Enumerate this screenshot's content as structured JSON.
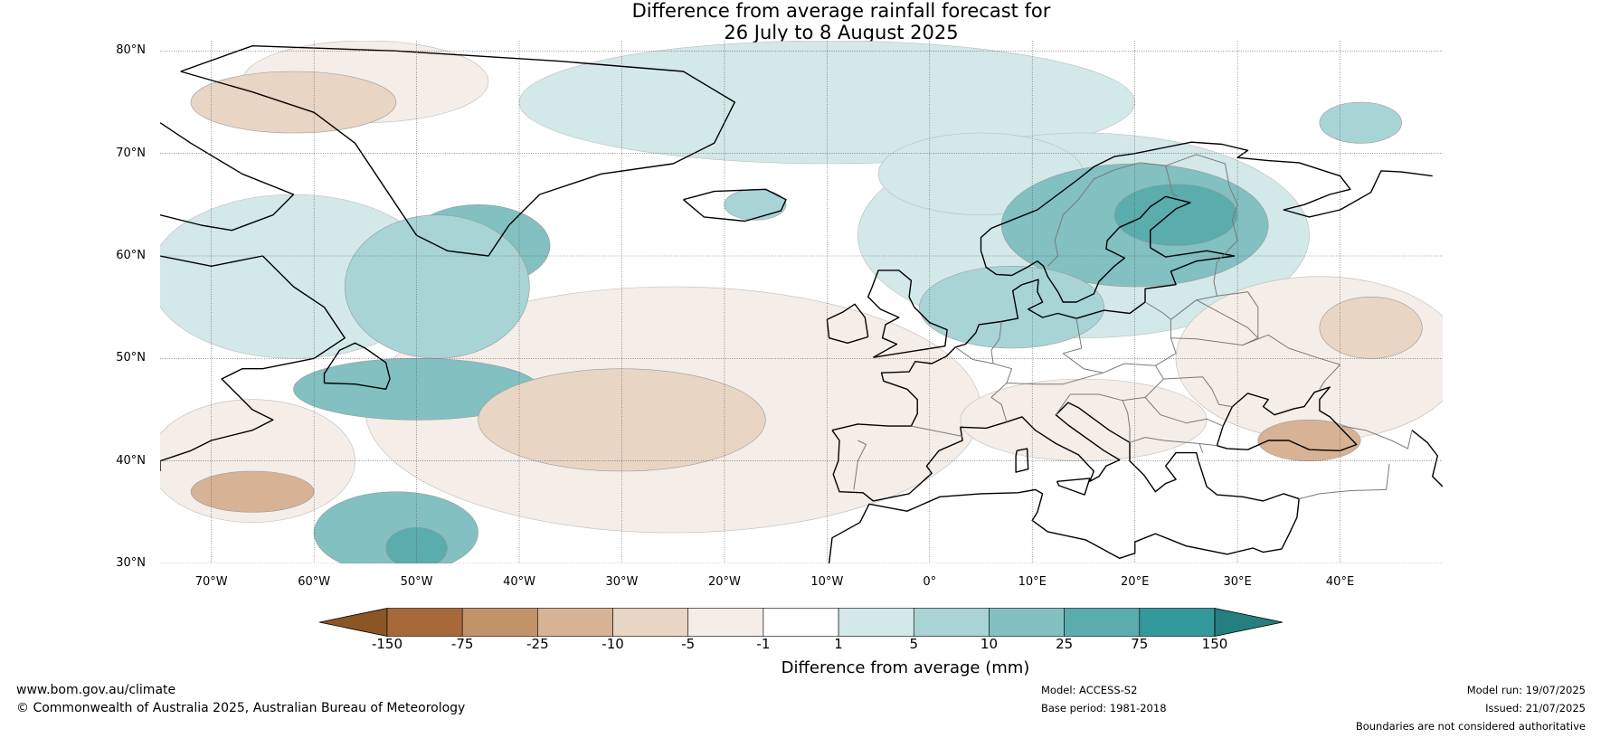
{
  "title": {
    "line1": "Difference from average rainfall forecast for",
    "line2": "26 July to 8 August 2025"
  },
  "map": {
    "latitudes": [
      "80°N",
      "70°N",
      "60°N",
      "50°N",
      "40°N",
      "30°N"
    ],
    "longitudes": [
      "70°W",
      "60°W",
      "50°W",
      "40°W",
      "30°W",
      "20°W",
      "10°W",
      "0°",
      "10°E",
      "20°E",
      "30°E",
      "40°E"
    ],
    "extent": {
      "lon_min": -75,
      "lon_max": 50,
      "lat_min": 30,
      "lat_max": 81
    },
    "regions": [
      {
        "name": "greenland-south-wetter",
        "lon": -44,
        "lat": 61,
        "rx_deg": 7,
        "ry_deg": 4,
        "class": "w3"
      },
      {
        "name": "labrador-sea-wetter",
        "lon": -48,
        "lat": 57,
        "rx_deg": 9,
        "ry_deg": 7,
        "class": "w2"
      },
      {
        "name": "newfoundland-wetter",
        "lon": -50,
        "lat": 47,
        "rx_deg": 12,
        "ry_deg": 3,
        "class": "w3"
      },
      {
        "name": "atlantic-sw-wetter",
        "lon": -52,
        "lat": 33,
        "rx_deg": 8,
        "ry_deg": 4,
        "class": "w3"
      },
      {
        "name": "atlantic-sw-wetter-core",
        "lon": -50,
        "lat": 31.5,
        "rx_deg": 3,
        "ry_deg": 2,
        "class": "w4"
      },
      {
        "name": "scandinavia-wetter",
        "lon": 20,
        "lat": 63,
        "rx_deg": 13,
        "ry_deg": 6,
        "class": "w3"
      },
      {
        "name": "scandinavia-wetter-core",
        "lon": 24,
        "lat": 64,
        "rx_deg": 6,
        "ry_deg": 3,
        "class": "w4"
      },
      {
        "name": "north-sea-wetter",
        "lon": 8,
        "lat": 55,
        "rx_deg": 9,
        "ry_deg": 4,
        "class": "w2"
      },
      {
        "name": "iceland-wetter",
        "lon": -17,
        "lat": 65,
        "rx_deg": 3,
        "ry_deg": 1.5,
        "class": "w2"
      },
      {
        "name": "barents-wetter",
        "lon": 42,
        "lat": 73,
        "rx_deg": 4,
        "ry_deg": 2,
        "class": "w2"
      },
      {
        "name": "mid-atlantic-drier",
        "lon": -30,
        "lat": 44,
        "rx_deg": 14,
        "ry_deg": 5,
        "class": "d2"
      },
      {
        "name": "greenland-west-drier",
        "lon": -62,
        "lat": 75,
        "rx_deg": 10,
        "ry_deg": 3,
        "class": "d2"
      },
      {
        "name": "atlantic-west-drier",
        "lon": -66,
        "lat": 37,
        "rx_deg": 6,
        "ry_deg": 2,
        "class": "d3"
      },
      {
        "name": "eastern-europe-drier",
        "lon": 43,
        "lat": 53,
        "rx_deg": 5,
        "ry_deg": 3,
        "class": "d2"
      },
      {
        "name": "turkey-drier",
        "lon": 37,
        "lat": 42,
        "rx_deg": 5,
        "ry_deg": 2,
        "class": "d3"
      }
    ]
  },
  "colorbar": {
    "colors": [
      "#a8693a",
      "#c29369",
      "#d7b295",
      "#e9d5c4",
      "#f4ede8",
      "#ffffff",
      "#d3e8e8",
      "#a8d4d6",
      "#82c0c1",
      "#5aacad",
      "#33999a"
    ],
    "under_color": "#8b5624",
    "over_color": "#237f80",
    "ticks": [
      "-150",
      "-75",
      "-25",
      "-10",
      "-5",
      "-1",
      "1",
      "5",
      "10",
      "25",
      "75",
      "150"
    ],
    "label": "Difference from average (mm)"
  },
  "footer": {
    "website": "www.bom.gov.au/climate",
    "copyright": "© Commonwealth of Australia 2025, Australian Bureau of Meteorology",
    "model": "Model: ACCESS-S2",
    "base_period": "Base period: 1981-2018",
    "model_run": "Model run: 19/07/2025",
    "issued": "Issued: 21/07/2025",
    "boundaries_note": "Boundaries are not considered authoritative"
  }
}
